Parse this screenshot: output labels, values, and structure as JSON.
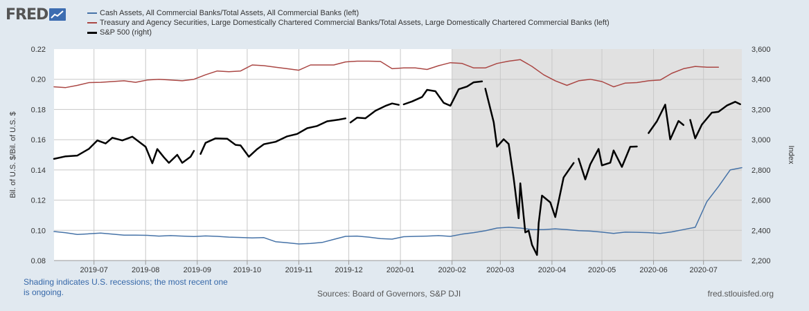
{
  "logo": {
    "text": "FRED",
    "icon": "line-chart-icon"
  },
  "legend": [
    {
      "label": "Cash Assets, All Commercial Banks/Total Assets, All Commercial Banks (left)",
      "color": "#4572a7"
    },
    {
      "label": "Treasury and Agency Securities, Large Domestically Chartered Commercial Banks/Total Assets, Large Domestically Chartered Commercial Banks (left)",
      "color": "#aa4643"
    },
    {
      "label": "S&P 500 (right)",
      "color": "#000000"
    }
  ],
  "footer": {
    "note": "Shading indicates U.S. recessions; the most recent one is ongoing.",
    "sources": "Sources: Board of Governors, S&P DJI",
    "url": "fred.stlouisfed.org"
  },
  "chart_data": {
    "type": "line",
    "left_axis": {
      "label": "Bil. of U.S. $/Bil. of U.S. $",
      "range": [
        0.08,
        0.22
      ],
      "ticks": [
        "0.08",
        "0.10",
        "0.12",
        "0.14",
        "0.16",
        "0.18",
        "0.20",
        "0.22"
      ]
    },
    "right_axis": {
      "label": "Index",
      "range": [
        2200,
        3600
      ],
      "ticks": [
        "2,200",
        "2,400",
        "2,600",
        "2,800",
        "3,000",
        "3,200",
        "3,400",
        "3,600"
      ]
    },
    "x_axis": {
      "range": [
        "2019-06-07",
        "2020-07-24"
      ],
      "ticks": [
        "2019-07",
        "2019-08",
        "2019-09",
        "2019-10",
        "2019-11",
        "2019-12",
        "2020-01",
        "2020-02",
        "2020-03",
        "2020-04",
        "2020-05",
        "2020-06",
        "2020-07"
      ]
    },
    "grid": true,
    "recession_shading": {
      "start": "2020-02-01",
      "end": "2020-07-24"
    },
    "series": [
      {
        "name": "Cash Assets, All Commercial Banks/Total Assets, All Commercial Banks (left)",
        "axis": "left",
        "color": "#4572a7",
        "points": [
          [
            "2019-06-07",
            0.0992
          ],
          [
            "2019-06-14",
            0.0984
          ],
          [
            "2019-06-21",
            0.0973
          ],
          [
            "2019-06-28",
            0.0977
          ],
          [
            "2019-07-05",
            0.0982
          ],
          [
            "2019-07-12",
            0.0975
          ],
          [
            "2019-07-19",
            0.0968
          ],
          [
            "2019-07-26",
            0.0968
          ],
          [
            "2019-08-02",
            0.0967
          ],
          [
            "2019-08-09",
            0.0962
          ],
          [
            "2019-08-16",
            0.0965
          ],
          [
            "2019-08-23",
            0.0962
          ],
          [
            "2019-08-30",
            0.0959
          ],
          [
            "2019-09-06",
            0.0963
          ],
          [
            "2019-09-13",
            0.096
          ],
          [
            "2019-09-20",
            0.0955
          ],
          [
            "2019-09-27",
            0.0953
          ],
          [
            "2019-10-04",
            0.095
          ],
          [
            "2019-10-11",
            0.0952
          ],
          [
            "2019-10-18",
            0.0925
          ],
          [
            "2019-10-25",
            0.0918
          ],
          [
            "2019-11-01",
            0.091
          ],
          [
            "2019-11-08",
            0.0913
          ],
          [
            "2019-11-15",
            0.092
          ],
          [
            "2019-11-22",
            0.094
          ],
          [
            "2019-11-29",
            0.096
          ],
          [
            "2019-12-06",
            0.0962
          ],
          [
            "2019-12-13",
            0.0955
          ],
          [
            "2019-12-20",
            0.0945
          ],
          [
            "2019-12-27",
            0.0942
          ],
          [
            "2020-01-03",
            0.0958
          ],
          [
            "2020-01-10",
            0.096
          ],
          [
            "2020-01-17",
            0.0962
          ],
          [
            "2020-01-24",
            0.0965
          ],
          [
            "2020-01-31",
            0.096
          ],
          [
            "2020-02-07",
            0.0975
          ],
          [
            "2020-02-14",
            0.0985
          ],
          [
            "2020-02-21",
            0.0997
          ],
          [
            "2020-02-28",
            0.1015
          ],
          [
            "2020-03-06",
            0.102
          ],
          [
            "2020-03-13",
            0.1015
          ],
          [
            "2020-03-20",
            0.1005
          ],
          [
            "2020-03-27",
            0.1005
          ],
          [
            "2020-04-03",
            0.101
          ],
          [
            "2020-04-10",
            0.1005
          ],
          [
            "2020-04-17",
            0.0998
          ],
          [
            "2020-04-24",
            0.0995
          ],
          [
            "2020-05-01",
            0.0988
          ],
          [
            "2020-05-08",
            0.098
          ],
          [
            "2020-05-15",
            0.0988
          ],
          [
            "2020-05-22",
            0.0987
          ],
          [
            "2020-05-29",
            0.0985
          ],
          [
            "2020-06-05",
            0.098
          ],
          [
            "2020-06-12",
            0.099
          ],
          [
            "2020-06-19",
            0.1005
          ],
          [
            "2020-06-26",
            0.102
          ],
          [
            "2020-07-03",
            0.119
          ],
          [
            "2020-07-10",
            0.129
          ],
          [
            "2020-07-17",
            0.14
          ],
          [
            "2020-07-24",
            0.1415
          ]
        ]
      },
      {
        "name": "Treasury and Agency Securities, Large Domestically Chartered Commercial Banks/Total Assets, Large Domestically Chartered Commercial Banks (left)",
        "axis": "left",
        "color": "#aa4643",
        "points": [
          [
            "2019-06-07",
            0.195
          ],
          [
            "2019-06-14",
            0.1945
          ],
          [
            "2019-06-21",
            0.196
          ],
          [
            "2019-06-28",
            0.1978
          ],
          [
            "2019-07-05",
            0.198
          ],
          [
            "2019-07-12",
            0.1985
          ],
          [
            "2019-07-19",
            0.199
          ],
          [
            "2019-07-26",
            0.198
          ],
          [
            "2019-08-02",
            0.1995
          ],
          [
            "2019-08-09",
            0.2
          ],
          [
            "2019-08-16",
            0.1995
          ],
          [
            "2019-08-23",
            0.199
          ],
          [
            "2019-08-30",
            0.2
          ],
          [
            "2019-09-06",
            0.203
          ],
          [
            "2019-09-13",
            0.2055
          ],
          [
            "2019-09-20",
            0.205
          ],
          [
            "2019-09-27",
            0.2055
          ],
          [
            "2019-10-04",
            0.2095
          ],
          [
            "2019-10-11",
            0.209
          ],
          [
            "2019-10-18",
            0.208
          ],
          [
            "2019-10-25",
            0.207
          ],
          [
            "2019-11-01",
            0.206
          ],
          [
            "2019-11-08",
            0.2095
          ],
          [
            "2019-11-15",
            0.2095
          ],
          [
            "2019-11-22",
            0.2095
          ],
          [
            "2019-11-29",
            0.2115
          ],
          [
            "2019-12-06",
            0.212
          ],
          [
            "2019-12-13",
            0.212
          ],
          [
            "2019-12-20",
            0.2118
          ],
          [
            "2019-12-27",
            0.207
          ],
          [
            "2020-01-03",
            0.2075
          ],
          [
            "2020-01-10",
            0.2075
          ],
          [
            "2020-01-17",
            0.2065
          ],
          [
            "2020-01-24",
            0.209
          ],
          [
            "2020-01-31",
            0.211
          ],
          [
            "2020-02-07",
            0.2105
          ],
          [
            "2020-02-14",
            0.2075
          ],
          [
            "2020-02-21",
            0.2075
          ],
          [
            "2020-02-28",
            0.2105
          ],
          [
            "2020-03-06",
            0.212
          ],
          [
            "2020-03-13",
            0.213
          ],
          [
            "2020-03-20",
            0.2085
          ],
          [
            "2020-03-27",
            0.203
          ],
          [
            "2020-04-03",
            0.199
          ],
          [
            "2020-04-10",
            0.196
          ],
          [
            "2020-04-17",
            0.199
          ],
          [
            "2020-04-24",
            0.2
          ],
          [
            "2020-05-01",
            0.1985
          ],
          [
            "2020-05-08",
            0.195
          ],
          [
            "2020-05-15",
            0.1975
          ],
          [
            "2020-05-22",
            0.1978
          ],
          [
            "2020-05-29",
            0.199
          ],
          [
            "2020-06-05",
            0.1995
          ],
          [
            "2020-06-12",
            0.204
          ],
          [
            "2020-06-19",
            0.207
          ],
          [
            "2020-06-26",
            0.2085
          ],
          [
            "2020-07-03",
            0.208
          ],
          [
            "2020-07-10",
            0.208
          ]
        ]
      },
      {
        "name": "S&P 500 (right)",
        "axis": "right",
        "color": "#000000",
        "segments": [
          [
            [
              "2019-06-07",
              2873
            ],
            [
              "2019-06-14",
              2890
            ],
            [
              "2019-06-21",
              2895
            ],
            [
              "2019-06-28",
              2940
            ],
            [
              "2019-07-03",
              2995
            ],
            [
              "2019-07-08",
              2975
            ],
            [
              "2019-07-12",
              3013
            ],
            [
              "2019-07-18",
              2995
            ],
            [
              "2019-07-24",
              3020
            ],
            [
              "2019-08-01",
              2953
            ],
            [
              "2019-08-05",
              2844
            ],
            [
              "2019-08-08",
              2938
            ],
            [
              "2019-08-12",
              2883
            ],
            [
              "2019-08-15",
              2847
            ],
            [
              "2019-08-20",
              2900
            ],
            [
              "2019-08-23",
              2847
            ],
            [
              "2019-08-28",
              2887
            ],
            [
              "2019-08-30",
              2926
            ]
          ],
          [
            [
              "2019-09-03",
              2906
            ],
            [
              "2019-09-06",
              2979
            ],
            [
              "2019-09-12",
              3009
            ],
            [
              "2019-09-19",
              3006
            ],
            [
              "2019-09-24",
              2966
            ],
            [
              "2019-09-27",
              2962
            ],
            [
              "2019-10-02",
              2887
            ],
            [
              "2019-10-07",
              2938
            ],
            [
              "2019-10-11",
              2970
            ],
            [
              "2019-10-18",
              2986
            ],
            [
              "2019-10-25",
              3022
            ],
            [
              "2019-10-31",
              3038
            ],
            [
              "2019-11-06",
              3076
            ],
            [
              "2019-11-12",
              3091
            ],
            [
              "2019-11-18",
              3122
            ],
            [
              "2019-11-25",
              3133
            ],
            [
              "2019-11-29",
              3141
            ]
          ],
          [
            [
              "2019-12-02",
              3114
            ],
            [
              "2019-12-06",
              3146
            ],
            [
              "2019-12-11",
              3142
            ],
            [
              "2019-12-17",
              3192
            ],
            [
              "2019-12-23",
              3224
            ],
            [
              "2019-12-27",
              3240
            ],
            [
              "2019-12-31",
              3231
            ]
          ],
          [
            [
              "2020-01-03",
              3234
            ],
            [
              "2020-01-08",
              3253
            ],
            [
              "2020-01-14",
              3283
            ],
            [
              "2020-01-17",
              3330
            ],
            [
              "2020-01-22",
              3321
            ],
            [
              "2020-01-27",
              3244
            ],
            [
              "2020-01-31",
              3225
            ],
            [
              "2020-02-05",
              3334
            ],
            [
              "2020-02-10",
              3352
            ],
            [
              "2020-02-14",
              3380
            ],
            [
              "2020-02-19",
              3386
            ]
          ],
          [
            [
              "2020-02-21",
              3338
            ],
            [
              "2020-02-26",
              3116
            ],
            [
              "2020-02-28",
              2954
            ],
            [
              "2020-03-03",
              3003
            ],
            [
              "2020-03-06",
              2972
            ],
            [
              "2020-03-09",
              2746
            ],
            [
              "2020-03-12",
              2480
            ],
            [
              "2020-03-13",
              2711
            ],
            [
              "2020-03-16",
              2386
            ],
            [
              "2020-03-18",
              2398
            ],
            [
              "2020-03-20",
              2304
            ],
            [
              "2020-03-23",
              2237
            ],
            [
              "2020-03-24",
              2447
            ],
            [
              "2020-03-26",
              2630
            ],
            [
              "2020-03-31",
              2585
            ],
            [
              "2020-04-03",
              2488
            ],
            [
              "2020-04-08",
              2750
            ],
            [
              "2020-04-14",
              2846
            ]
          ],
          [
            [
              "2020-04-17",
              2874
            ],
            [
              "2020-04-21",
              2737
            ],
            [
              "2020-04-24",
              2837
            ],
            [
              "2020-04-29",
              2939
            ],
            [
              "2020-05-01",
              2830
            ],
            [
              "2020-05-06",
              2848
            ],
            [
              "2020-05-08",
              2929
            ],
            [
              "2020-05-13",
              2820
            ],
            [
              "2020-05-18",
              2953
            ],
            [
              "2020-05-22",
              2955
            ]
          ],
          [
            [
              "2020-05-29",
              3044
            ],
            [
              "2020-06-03",
              3122
            ],
            [
              "2020-06-08",
              3232
            ],
            [
              "2020-06-11",
              3002
            ],
            [
              "2020-06-16",
              3124
            ],
            [
              "2020-06-19",
              3097
            ]
          ],
          [
            [
              "2020-06-23",
              3131
            ],
            [
              "2020-06-26",
              3009
            ],
            [
              "2020-06-30",
              3100
            ],
            [
              "2020-07-06",
              3179
            ],
            [
              "2020-07-10",
              3185
            ],
            [
              "2020-07-15",
              3226
            ],
            [
              "2020-07-20",
              3251
            ],
            [
              "2020-07-23",
              3235
            ]
          ]
        ]
      }
    ]
  }
}
